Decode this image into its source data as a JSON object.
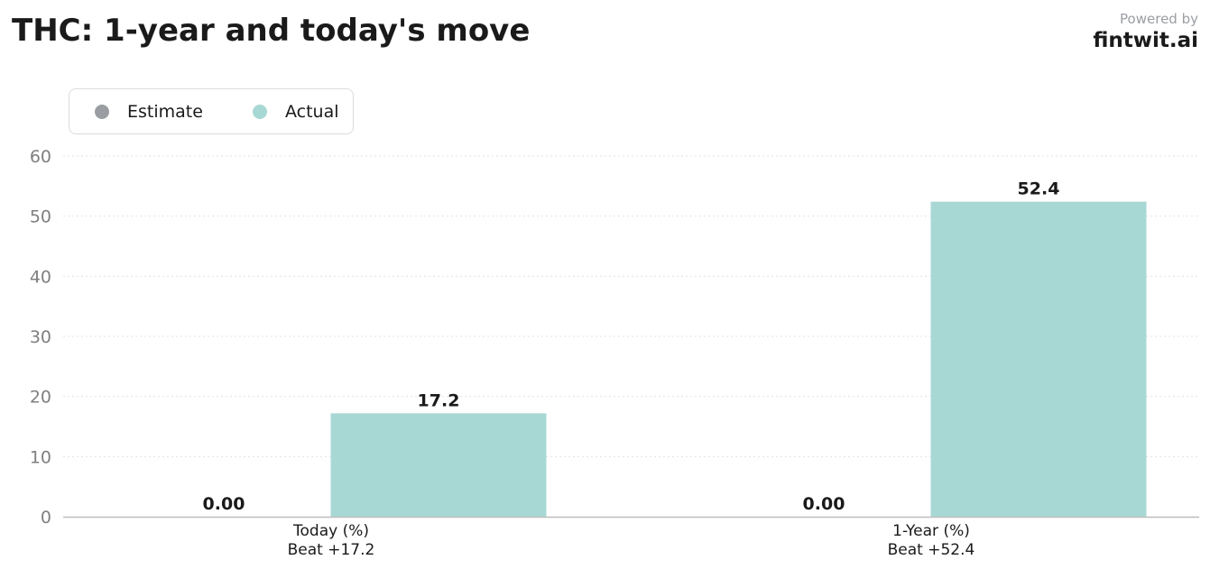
{
  "header": {
    "title": "THC: 1-year and today's move",
    "powered_by": "Powered by",
    "brand": "fintwit.ai"
  },
  "legend": {
    "items": [
      {
        "label": "Estimate",
        "color": "#9a9ea3"
      },
      {
        "label": "Actual",
        "color": "#a8d8d4"
      }
    ]
  },
  "chart_data": {
    "type": "bar",
    "categories": [
      "Today (%)",
      "1-Year (%)"
    ],
    "category_sublabels": [
      "Beat +17.2",
      "Beat +52.4"
    ],
    "series": [
      {
        "name": "Estimate",
        "values": [
          0,
          0
        ],
        "labels": [
          "0.00",
          "0.00"
        ],
        "color": "#9a9ea3"
      },
      {
        "name": "Actual",
        "values": [
          17.2,
          52.4
        ],
        "labels": [
          "17.2",
          "52.4"
        ],
        "color": "#a8d8d4"
      }
    ],
    "ylim": [
      0,
      60
    ],
    "yticks": [
      0,
      10,
      20,
      30,
      40,
      50,
      60
    ],
    "grid": true,
    "legend_position": "top-left",
    "xlabel": "",
    "ylabel": ""
  }
}
